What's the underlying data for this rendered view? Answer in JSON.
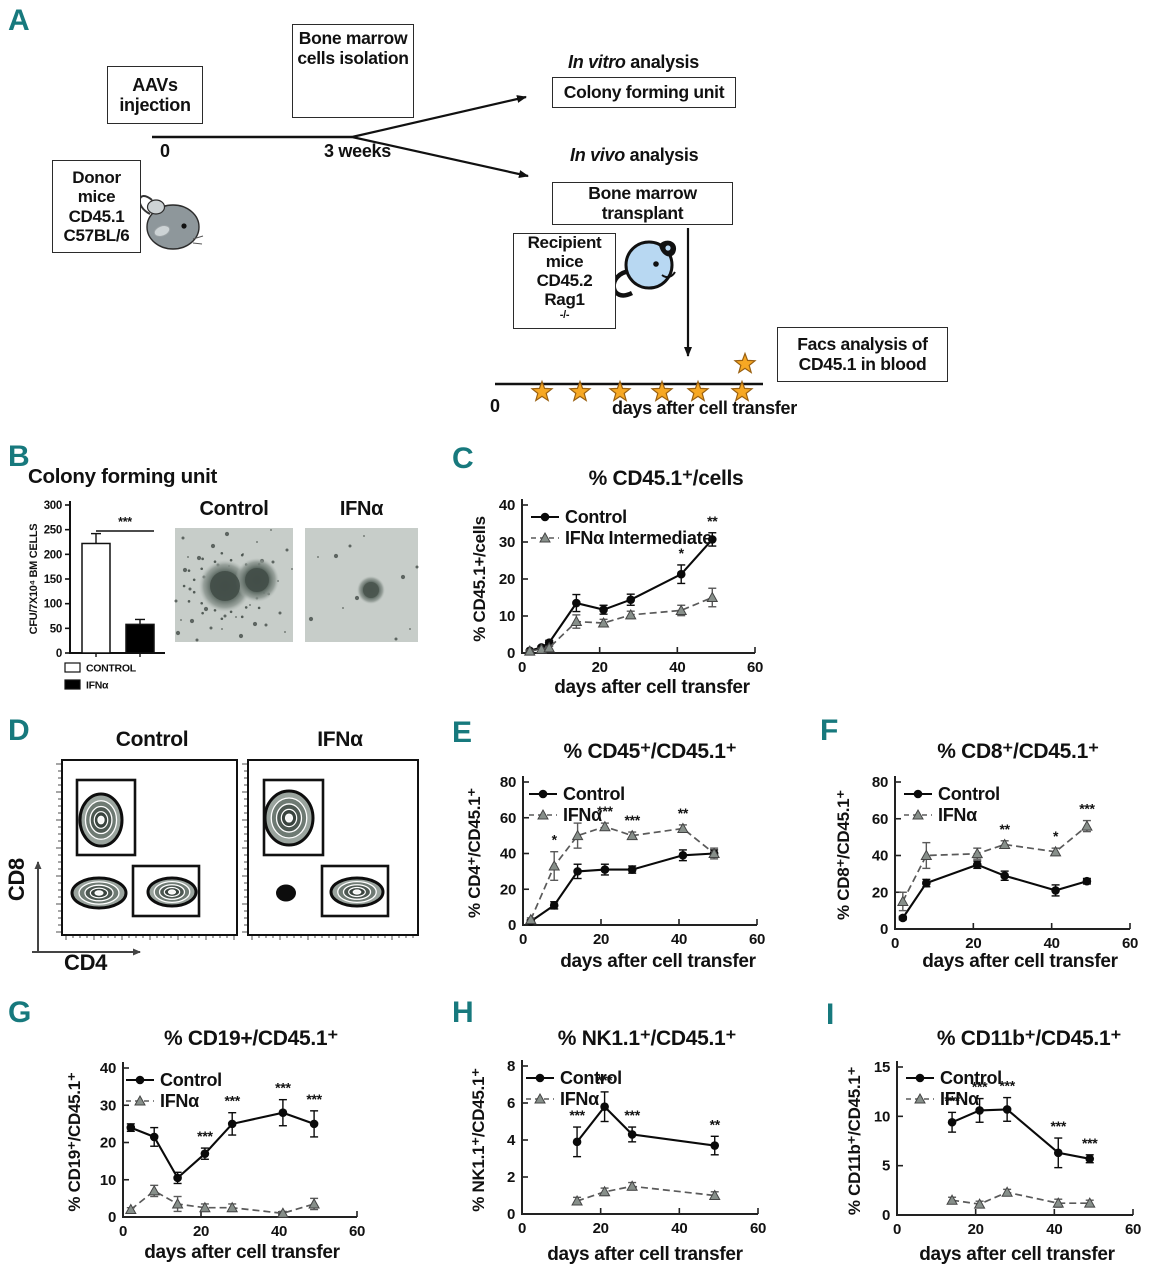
{
  "figure": {
    "background": "#ffffff",
    "panel_letter_color": "#17797d",
    "star_color": "#f7a823",
    "control_color": "#0a0a0a",
    "ifna_color": "#5a5a5a"
  },
  "icons": {
    "star": "timepoint-star-icon",
    "donor_mouse": "gray-mouse-icon",
    "recipient_mouse": "blue-mouse-icon",
    "bone": "bone-icon",
    "arrow": "arrowhead"
  },
  "panels": {
    "A": {
      "letter": "A",
      "aavs_box": [
        "AAVs",
        "injection"
      ],
      "bone_marrow_box": [
        "Bone marrow",
        "cells isolation"
      ],
      "timeline": {
        "start": "0",
        "mid": "3 weeks"
      },
      "in_vitro": {
        "italic": "In vitro",
        "rest": " analysis"
      },
      "colony_box": "Colony forming unit",
      "in_vivo": {
        "italic": "In vivo",
        "rest": " analysis"
      },
      "transplant_box": [
        "Bone marrow",
        "transplant"
      ],
      "recipient_box": {
        "lines": [
          "Recipient",
          "mice",
          "CD45.2"
        ],
        "gene": "Rag1",
        "gene_sup": "-/-"
      },
      "donor_box": [
        "Donor",
        "mice",
        "CD45.1",
        "C57BL/6"
      ],
      "facs_box": [
        "Facs analysis of",
        "CD45.1 in blood"
      ],
      "bottom_timeline": {
        "start": "0",
        "label": "days after cell transfer"
      }
    },
    "B": {
      "letter": "B",
      "image_labels": [
        "Control",
        "IFNα"
      ]
    },
    "C": {
      "letter": "C"
    },
    "D": {
      "letter": "D",
      "plot_labels": [
        "Control",
        "IFNα"
      ],
      "xlabel": "CD4",
      "ylabel": "CD8"
    },
    "E": {
      "letter": "E"
    },
    "F": {
      "letter": "F"
    },
    "G": {
      "letter": "G"
    },
    "H": {
      "letter": "H"
    },
    "I": {
      "letter": "I"
    }
  },
  "chart_data": [
    {
      "id": "B",
      "type": "bar",
      "title": "Colony forming unit",
      "ylabel": "CFU/7X10⁴ BM CELLS",
      "categories": [
        "CONTROL",
        "IFNα"
      ],
      "values": [
        222,
        58
      ],
      "errors": [
        20,
        10
      ],
      "bar_fills": [
        "#ffffff",
        "#000000"
      ],
      "ylim": [
        0,
        300
      ],
      "yticks": [
        0,
        50,
        100,
        150,
        200,
        250,
        300
      ],
      "significance": {
        "label": "***",
        "between": [
          "CONTROL",
          "IFNα"
        ]
      },
      "legend": [
        {
          "label": "CONTROL",
          "fill": "#ffffff"
        },
        {
          "label": "IFNα",
          "fill": "#000000"
        }
      ],
      "grid": false
    },
    {
      "id": "C",
      "type": "line",
      "title": "% CD45.1⁺/cells",
      "ylabel": "% CD45.1+/cells",
      "xlabel": "days after cell transfer",
      "xlim": [
        0,
        60
      ],
      "ylim": [
        0,
        40
      ],
      "xticks": [
        0,
        20,
        40,
        60
      ],
      "yticks": [
        0,
        10,
        20,
        30,
        40
      ],
      "grid": false,
      "legend_position": "top-left",
      "series": [
        {
          "name": "Control",
          "marker": "circle",
          "line": "solid",
          "color": "#0a0a0a",
          "x": [
            2,
            5,
            7,
            14,
            21,
            28,
            41,
            49
          ],
          "y": [
            0.6,
            1.5,
            2.8,
            13.5,
            11.7,
            14.4,
            21.3,
            30.7
          ],
          "err": [
            0.3,
            0.4,
            0.6,
            2.3,
            1.2,
            1.5,
            2.5,
            1.8
          ],
          "sig": [
            {
              "x": 41,
              "label": "*"
            },
            {
              "x": 49,
              "label": "**"
            }
          ]
        },
        {
          "name": "IFNα Intermediate",
          "marker": "triangle",
          "line": "dashed",
          "color": "#5a5a5a",
          "x": [
            2,
            5,
            7,
            14,
            21,
            28,
            41,
            49
          ],
          "y": [
            0.5,
            1.0,
            1.4,
            8.5,
            8.1,
            10.3,
            11.5,
            15.0
          ],
          "err": [
            0.3,
            0.3,
            0.4,
            1.8,
            1.0,
            1.0,
            1.4,
            2.5
          ],
          "sig": []
        }
      ]
    },
    {
      "id": "D",
      "type": "flow-contour",
      "plots": [
        {
          "title": "Control",
          "xlabel": "CD4",
          "ylabel": "CD8",
          "gates": [
            "CD8+ population",
            "CD4+ population"
          ],
          "populations": 3
        },
        {
          "title": "IFNα",
          "xlabel": "CD4",
          "ylabel": "CD8",
          "gates": [
            "CD8+ population",
            "CD4+ population"
          ],
          "populations": 3
        }
      ]
    },
    {
      "id": "E",
      "type": "line",
      "title": "% CD45⁺/CD45.1⁺",
      "ylabel": "% CD4⁺/CD45.1⁺",
      "xlabel": "days after cell transfer",
      "xlim": [
        0,
        60
      ],
      "ylim": [
        0,
        80
      ],
      "xticks": [
        0,
        20,
        40,
        60
      ],
      "yticks": [
        0,
        20,
        40,
        60,
        80
      ],
      "grid": false,
      "legend_position": "top-left",
      "series": [
        {
          "name": "Control",
          "marker": "circle",
          "line": "solid",
          "color": "#0a0a0a",
          "x": [
            2,
            8,
            14,
            21,
            28,
            41,
            49
          ],
          "y": [
            2,
            11,
            30,
            31,
            31,
            39,
            40
          ],
          "err": [
            1,
            2,
            4,
            3,
            2,
            3,
            2
          ],
          "sig": []
        },
        {
          "name": "IFNα",
          "marker": "triangle",
          "line": "dashed",
          "color": "#5a5a5a",
          "x": [
            2,
            8,
            14,
            21,
            28,
            41,
            49
          ],
          "y": [
            3,
            33,
            50,
            55,
            50,
            54,
            40
          ],
          "err": [
            1,
            8,
            7,
            2,
            2,
            2,
            3
          ],
          "sig": [
            {
              "x": 8,
              "label": "*"
            },
            {
              "x": 21,
              "label": "***"
            },
            {
              "x": 28,
              "label": "***"
            },
            {
              "x": 41,
              "label": "**"
            }
          ]
        }
      ]
    },
    {
      "id": "F",
      "type": "line",
      "title": "% CD8⁺/CD45.1⁺",
      "ylabel": "% CD8⁺/CD45.1⁺",
      "xlabel": "days after cell transfer",
      "xlim": [
        0,
        60
      ],
      "ylim": [
        0,
        80
      ],
      "xticks": [
        0,
        20,
        40,
        60
      ],
      "yticks": [
        0,
        20,
        40,
        60,
        80
      ],
      "grid": false,
      "legend_position": "top-left",
      "series": [
        {
          "name": "Control",
          "marker": "circle",
          "line": "solid",
          "color": "#0a0a0a",
          "x": [
            2,
            8,
            21,
            28,
            41,
            49
          ],
          "y": [
            6,
            25,
            35,
            29,
            21,
            26
          ],
          "err": [
            1,
            2,
            2,
            2.5,
            3,
            1.5
          ],
          "sig": []
        },
        {
          "name": "IFNα",
          "marker": "triangle",
          "line": "dashed",
          "color": "#5a5a5a",
          "x": [
            2,
            8,
            21,
            28,
            41,
            49
          ],
          "y": [
            15,
            40,
            41,
            46,
            42,
            56
          ],
          "err": [
            5,
            7,
            3,
            2,
            2,
            3
          ],
          "sig": [
            {
              "x": 28,
              "label": "**"
            },
            {
              "x": 41,
              "label": "*"
            },
            {
              "x": 49,
              "label": "***"
            }
          ]
        }
      ]
    },
    {
      "id": "G",
      "type": "line",
      "title": "% CD19+/CD45.1⁺",
      "ylabel": "% CD19⁺/CD45.1⁺",
      "xlabel": "days after cell transfer",
      "xlim": [
        0,
        60
      ],
      "ylim": [
        0,
        40
      ],
      "xticks": [
        0,
        20,
        40,
        60
      ],
      "yticks": [
        0,
        10,
        20,
        30,
        40
      ],
      "grid": false,
      "legend_position": "top-left",
      "series": [
        {
          "name": "Control",
          "marker": "circle",
          "line": "solid",
          "color": "#0a0a0a",
          "x": [
            2,
            8,
            14,
            21,
            28,
            41,
            49
          ],
          "y": [
            24,
            21.5,
            10.5,
            17,
            25,
            28,
            25
          ],
          "err": [
            1,
            2.5,
            1.5,
            1.5,
            3,
            3.5,
            3.5
          ],
          "sig": [
            {
              "x": 21,
              "label": "***"
            },
            {
              "x": 28,
              "label": "***"
            },
            {
              "x": 41,
              "label": "***"
            },
            {
              "x": 49,
              "label": "***"
            }
          ]
        },
        {
          "name": "IFNα",
          "marker": "triangle",
          "line": "dashed",
          "color": "#5a5a5a",
          "x": [
            2,
            8,
            14,
            21,
            28,
            41,
            49
          ],
          "y": [
            2,
            7,
            3.5,
            2.5,
            2.5,
            1,
            3.5
          ],
          "err": [
            0.5,
            1.5,
            2,
            1,
            1,
            0.5,
            1.5
          ],
          "sig": []
        }
      ]
    },
    {
      "id": "H",
      "type": "line",
      "title": "% NK1.1⁺/CD45.1⁺",
      "ylabel": "% NK1.1⁺/CD45.1⁺",
      "xlabel": "days after cell transfer",
      "xlim": [
        0,
        60
      ],
      "ylim": [
        0,
        8
      ],
      "xticks": [
        0,
        20,
        40,
        60
      ],
      "yticks": [
        0,
        2,
        4,
        6,
        8
      ],
      "grid": false,
      "legend_position": "top-left",
      "series": [
        {
          "name": "Control",
          "marker": "circle",
          "line": "solid",
          "color": "#0a0a0a",
          "x": [
            14,
            21,
            28,
            49
          ],
          "y": [
            3.9,
            5.8,
            4.3,
            3.7
          ],
          "err": [
            0.8,
            0.8,
            0.4,
            0.5
          ],
          "sig": [
            {
              "x": 14,
              "label": "***"
            },
            {
              "x": 21,
              "label": "***"
            },
            {
              "x": 28,
              "label": "***"
            },
            {
              "x": 49,
              "label": "**"
            }
          ]
        },
        {
          "name": "IFNα",
          "marker": "triangle",
          "line": "dashed",
          "color": "#5a5a5a",
          "x": [
            14,
            21,
            28,
            49
          ],
          "y": [
            0.7,
            1.2,
            1.5,
            1.0
          ],
          "err": [
            0.2,
            0.2,
            0.2,
            0.2
          ],
          "sig": []
        }
      ]
    },
    {
      "id": "I",
      "type": "line",
      "title": "% CD11b⁺/CD45.1⁺",
      "ylabel": "% CD11b⁺/CD45.1⁺",
      "xlabel": "days after cell transfer",
      "xlim": [
        0,
        60
      ],
      "ylim": [
        0,
        15
      ],
      "xticks": [
        0,
        20,
        40,
        60
      ],
      "yticks": [
        0,
        5,
        10,
        15
      ],
      "grid": false,
      "legend_position": "top-left",
      "series": [
        {
          "name": "Control",
          "marker": "circle",
          "line": "solid",
          "color": "#0a0a0a",
          "x": [
            14,
            21,
            28,
            41,
            49
          ],
          "y": [
            9.4,
            10.6,
            10.7,
            6.3,
            5.7
          ],
          "err": [
            1,
            1.2,
            1.2,
            1.5,
            0.4
          ],
          "sig": [
            {
              "x": 14,
              "label": "***"
            },
            {
              "x": 21,
              "label": "***"
            },
            {
              "x": 28,
              "label": "***"
            },
            {
              "x": 41,
              "label": "***"
            },
            {
              "x": 49,
              "label": "***"
            }
          ]
        },
        {
          "name": "IFNα",
          "marker": "triangle",
          "line": "dashed",
          "color": "#5a5a5a",
          "x": [
            14,
            21,
            28,
            41,
            49
          ],
          "y": [
            1.5,
            1.1,
            2.3,
            1.2,
            1.2
          ],
          "err": [
            0.3,
            0.3,
            0.3,
            0.4,
            0.3
          ],
          "sig": []
        }
      ]
    }
  ]
}
